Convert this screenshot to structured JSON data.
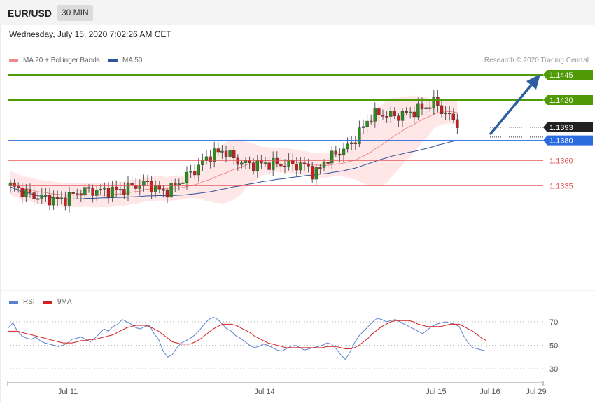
{
  "header": {
    "symbol": "EUR/USD",
    "timeframe": "30 MIN"
  },
  "datetime": "Wednesday, July 15, 2020 7:02:26 AM CET",
  "legend_main": [
    {
      "label": "MA 20 + Bollinger Bands",
      "color": "#f08a8a"
    },
    {
      "label": "MA 50",
      "color": "#2f5597"
    }
  ],
  "credit": "Research © 2020 Trading Central",
  "legend_rsi": [
    {
      "label": "RSI",
      "color": "#5b7fcf"
    },
    {
      "label": "9MA",
      "color": "#d42020"
    }
  ],
  "chart_data": {
    "type": "candlestick",
    "levels": [
      {
        "value": 1.1445,
        "label": "1.1445",
        "kind": "resistance-2",
        "color": "#4f9a06"
      },
      {
        "value": 1.142,
        "label": "1.1420",
        "kind": "resistance-1",
        "color": "#4f9a06"
      },
      {
        "value": 1.1393,
        "label": "1.1393",
        "kind": "last-price",
        "color": "#222222"
      },
      {
        "value": 1.138,
        "label": "1.1380",
        "kind": "pivot",
        "color": "#2a6be0"
      },
      {
        "value": 1.136,
        "label": "1.1360",
        "kind": "support-1",
        "color": "#e05050"
      },
      {
        "value": 1.1335,
        "label": "1.1335",
        "kind": "support-2",
        "color": "#e05050"
      }
    ],
    "y_range": [
      1.129,
      1.1452
    ],
    "x_ticks": [
      "Jul 11",
      "Jul 14",
      "Jul 15",
      "Jul 16",
      "Jul 29"
    ],
    "rsi": {
      "levels": [
        "70",
        "50",
        "30"
      ],
      "range": [
        20,
        80
      ],
      "values": [
        65,
        69,
        62,
        58,
        56,
        55,
        57,
        54,
        52,
        51,
        50,
        49,
        50,
        52,
        55,
        56,
        57,
        55,
        53,
        56,
        60,
        64,
        62,
        66,
        68,
        72,
        70,
        68,
        65,
        64,
        66,
        67,
        60,
        55,
        45,
        40,
        42,
        48,
        52,
        54,
        56,
        59,
        63,
        68,
        72,
        74,
        72,
        68,
        64,
        62,
        58,
        56,
        53,
        50,
        48,
        49,
        51,
        50,
        48,
        46,
        45,
        47,
        49,
        50,
        48,
        46,
        47,
        48,
        49,
        50,
        52,
        51,
        47,
        42,
        38,
        44,
        52,
        58,
        62,
        66,
        70,
        73,
        72,
        70,
        71,
        72,
        70,
        68,
        66,
        64,
        62,
        60,
        63,
        66,
        68,
        69,
        70,
        69,
        68,
        66,
        58,
        52,
        48,
        47,
        46,
        45
      ]
    },
    "rsi_ma": [
      62,
      62,
      62,
      61,
      60,
      59,
      58,
      57,
      56,
      55,
      54,
      53,
      52,
      52,
      52,
      53,
      54,
      54,
      55,
      55,
      56,
      57,
      58,
      59,
      61,
      63,
      65,
      66,
      67,
      67,
      67,
      66,
      64,
      62,
      59,
      56,
      53,
      52,
      51,
      51,
      51,
      53,
      55,
      58,
      61,
      64,
      66,
      68,
      68,
      68,
      67,
      65,
      63,
      61,
      58,
      56,
      54,
      52,
      51,
      50,
      49,
      48,
      48,
      48,
      48,
      48,
      48,
      48,
      48,
      48,
      49,
      49,
      49,
      48,
      47,
      47,
      48,
      50,
      53,
      56,
      60,
      63,
      66,
      68,
      70,
      71,
      71,
      71,
      71,
      70,
      68,
      67,
      66,
      66,
      66,
      66,
      67,
      68,
      68,
      68,
      66,
      64,
      62,
      59,
      56,
      54
    ]
  }
}
